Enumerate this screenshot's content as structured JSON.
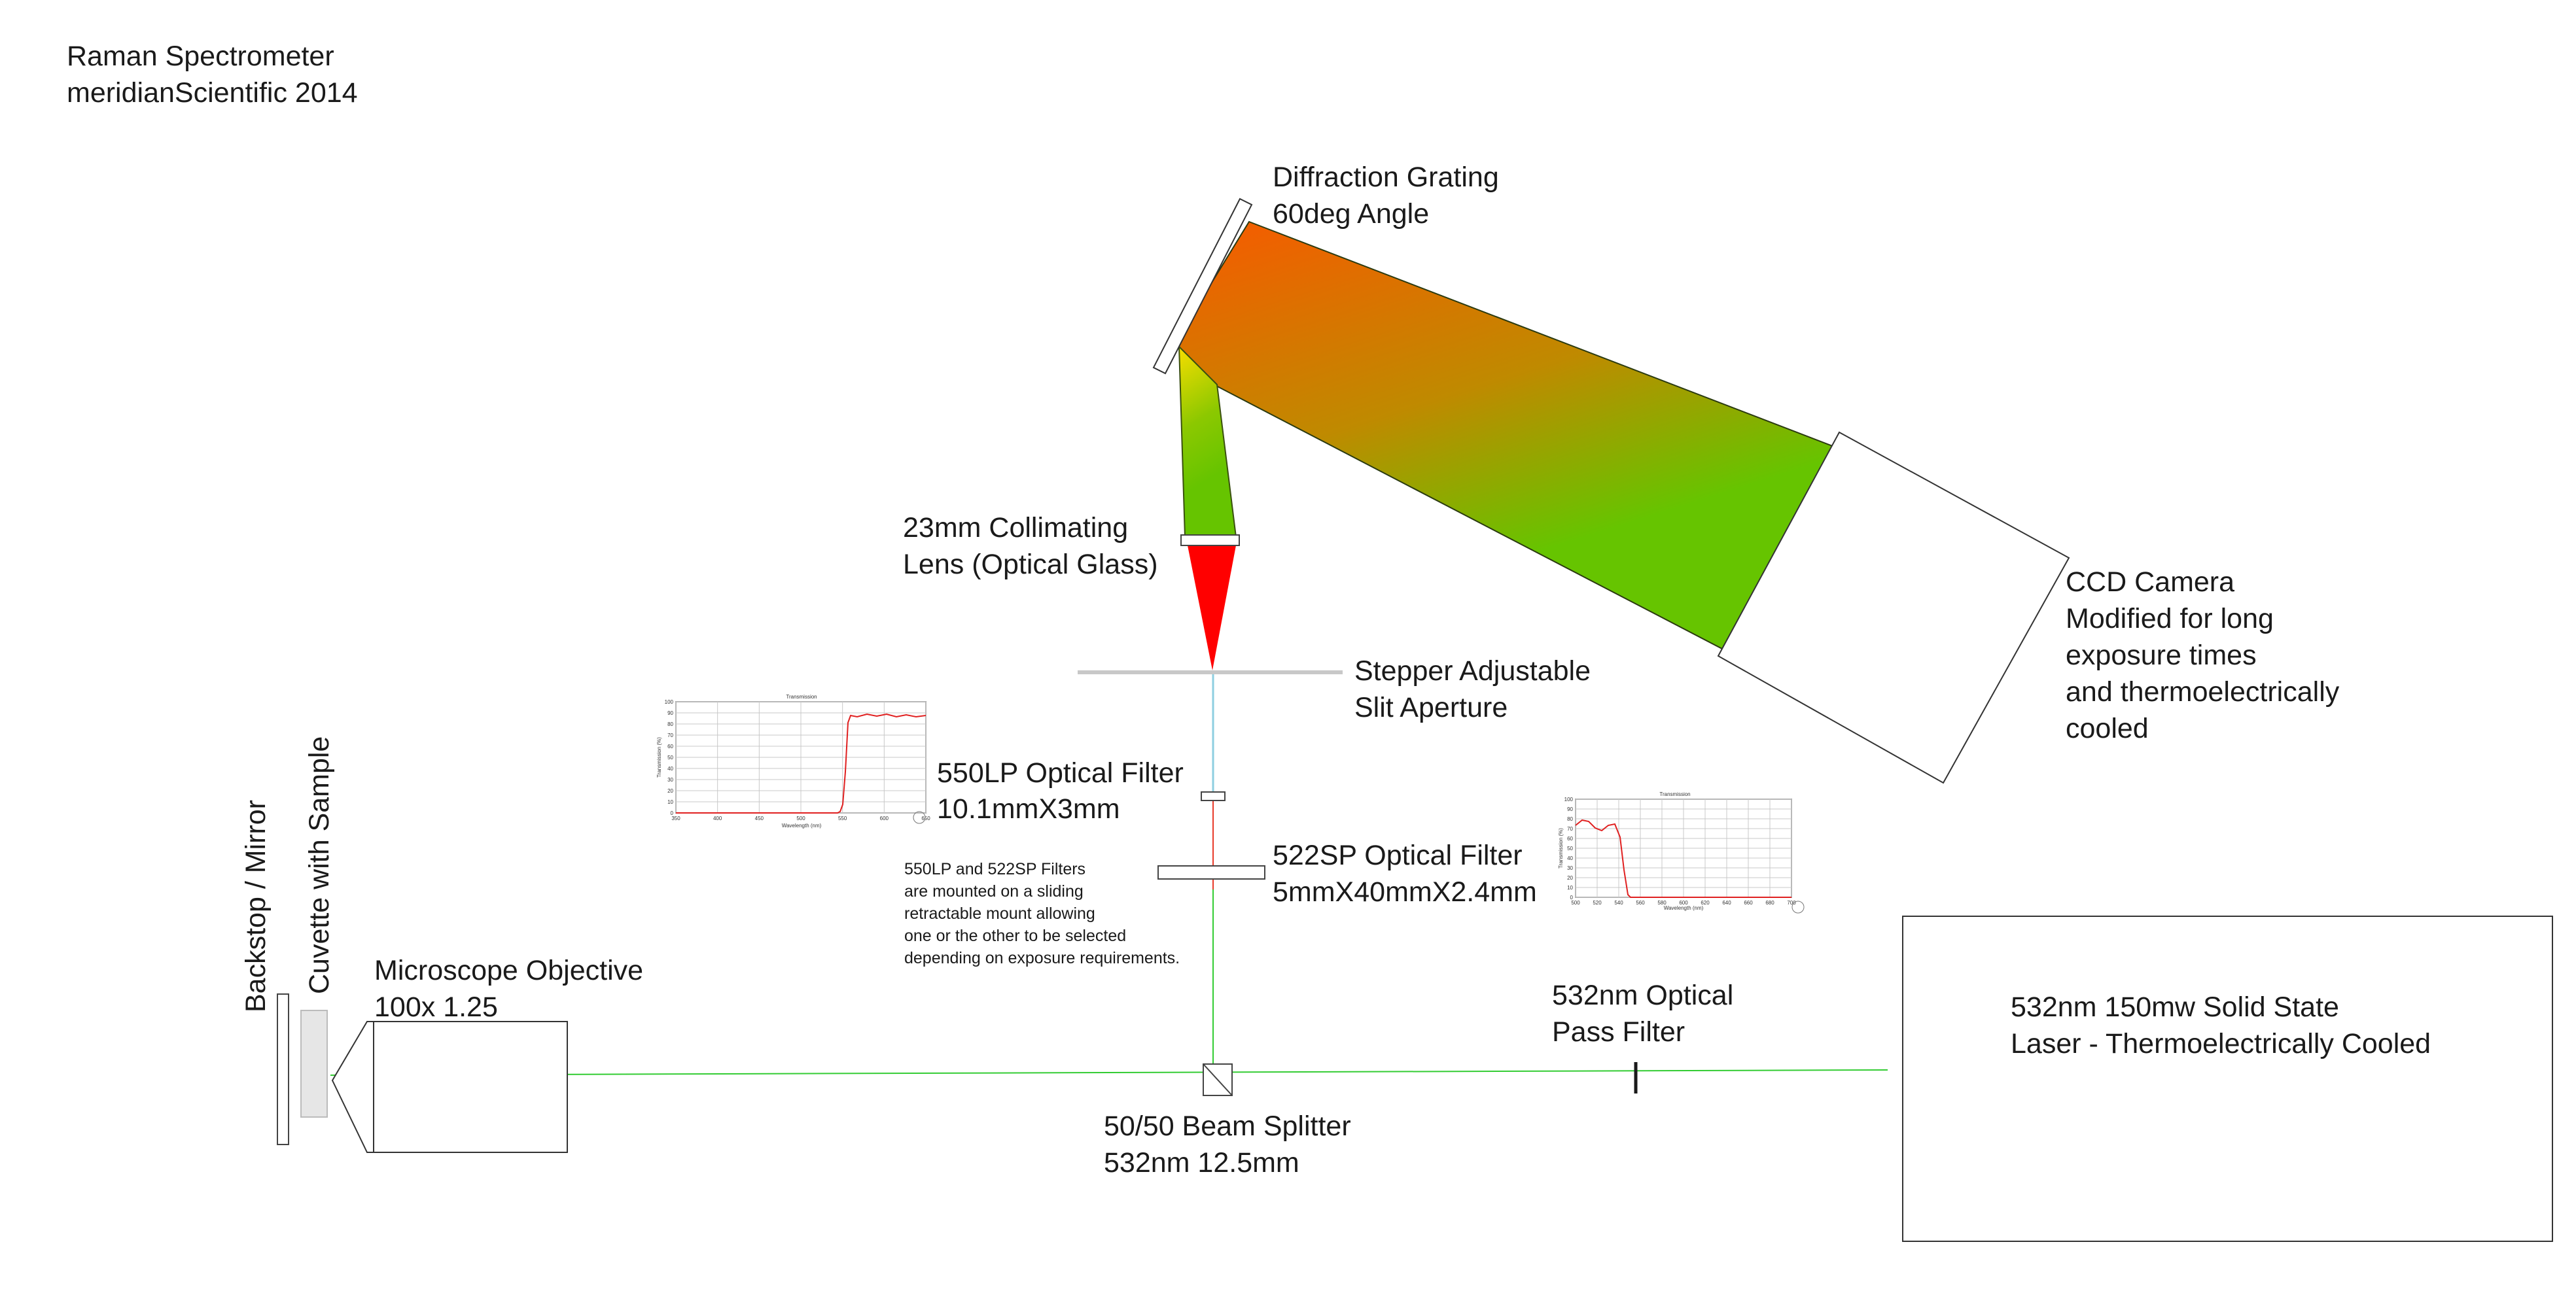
{
  "header": {
    "title": "Raman Spectrometer",
    "subtitle": "meridianScientific 2014"
  },
  "components": {
    "grating": {
      "line1": "Diffraction Grating",
      "line2": "60deg Angle"
    },
    "collimating_lens": {
      "line1": "23mm Collimating",
      "line2": "Lens (Optical Glass)"
    },
    "slit": {
      "line1": "Stepper Adjustable",
      "line2": "Slit Aperture"
    },
    "ccd": {
      "line1": "CCD Camera",
      "line2": "Modified for long",
      "line3": "exposure times",
      "line4": "and thermoelectrically",
      "line5": "cooled"
    },
    "filter_lp": {
      "line1": "550LP Optical Filter",
      "line2": "10.1mmX3mm"
    },
    "filter_sp": {
      "line1": "522SP Optical Filter",
      "line2": "5mmX40mmX2.4mm"
    },
    "filters_note": {
      "line1": "550LP and 522SP Filters",
      "line2": "are mounted on a sliding",
      "line3": "retractable mount allowing",
      "line4": "one or the other to be selected",
      "line5": "depending on exposure requirements."
    },
    "backstop": {
      "label": "Backstop / Mirror"
    },
    "cuvette": {
      "label": "Cuvette with Sample"
    },
    "objective": {
      "line1": "Microscope Objective",
      "line2": "100x 1.25"
    },
    "pass_filter": {
      "line1": "532nm Optical",
      "line2": "Pass Filter"
    },
    "beam_splitter": {
      "line1": "50/50 Beam Splitter",
      "line2": "532nm  12.5mm"
    },
    "laser": {
      "line1": "532nm 150mw Solid State",
      "line2": "Laser - Thermoelectrically Cooled"
    }
  },
  "inset_charts": {
    "lp": {
      "title": "Transmission",
      "ylabel": "Transmission (%)",
      "xlabel": "Wavelength (nm)",
      "y_ticks": [
        "100",
        "90",
        "80",
        "70",
        "60",
        "50",
        "40",
        "30",
        "20",
        "10",
        "0"
      ],
      "x_ticks": [
        "350",
        "400",
        "450",
        "500",
        "550",
        "600",
        "650"
      ]
    },
    "sp": {
      "title": "Transmission",
      "ylabel": "Transmission (%)",
      "xlabel": "Wavelength (nm)",
      "y_ticks": [
        "100",
        "90",
        "80",
        "70",
        "60",
        "50",
        "40",
        "30",
        "20",
        "10",
        "0"
      ],
      "x_ticks": [
        "500",
        "520",
        "540",
        "560",
        "580",
        "600",
        "620",
        "640",
        "660",
        "680",
        "700"
      ]
    }
  },
  "colors": {
    "beam_green": "#33cc33",
    "beam_return": "#8ecfe0",
    "beam_red": "#e83a2a",
    "spectrum_red": "#ff0000",
    "spectrum_orange": "#f06000",
    "spectrum_green": "#66c400",
    "spectrum_yellow": "#e8e000"
  }
}
